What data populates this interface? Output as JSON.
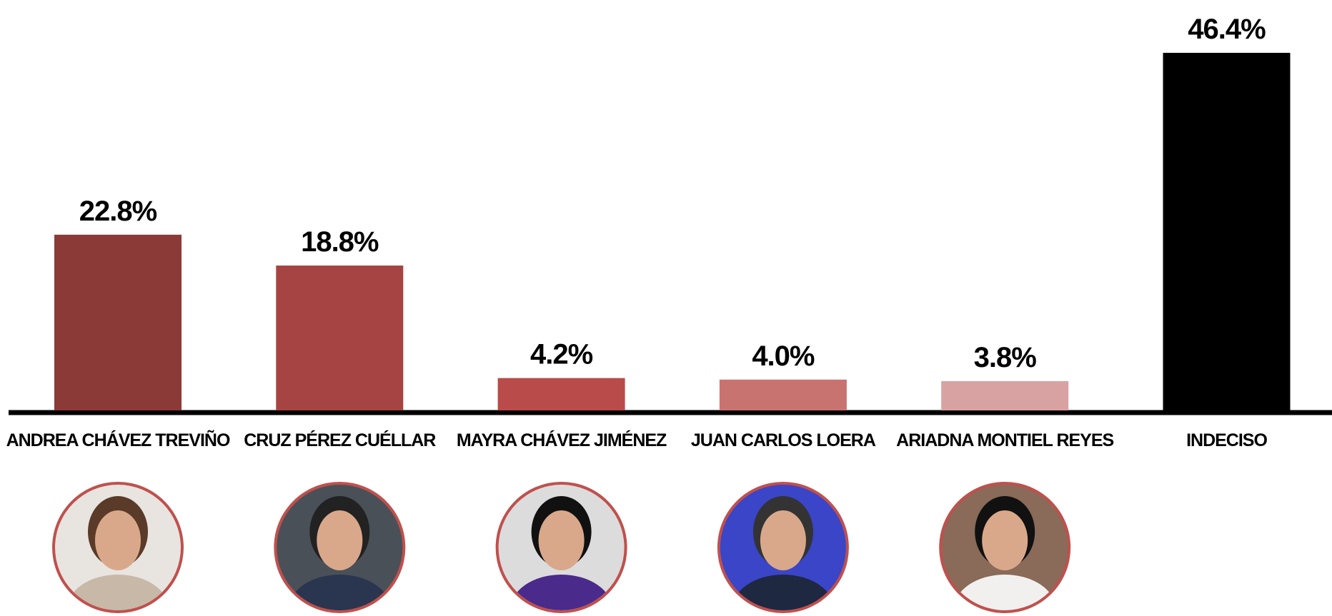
{
  "chart_data": {
    "type": "bar",
    "categories": [
      "ANDREA CHÁVEZ TREVIÑO",
      "CRUZ PÉREZ CUÉLLAR",
      "MAYRA CHÁVEZ JIMÉNEZ",
      "JUAN CARLOS LOERA",
      "ARIADNA MONTIEL REYES",
      "INDECISO"
    ],
    "values": [
      22.8,
      18.8,
      4.2,
      4.0,
      3.8,
      46.4
    ],
    "value_labels": [
      "22.8%",
      "18.8%",
      "4.2%",
      "4.0%",
      "3.8%",
      "46.4%"
    ],
    "colors": [
      "#8b3a38",
      "#a54442",
      "#b94c4a",
      "#c97371",
      "#d9a2a2",
      "#000000"
    ]
  }
}
